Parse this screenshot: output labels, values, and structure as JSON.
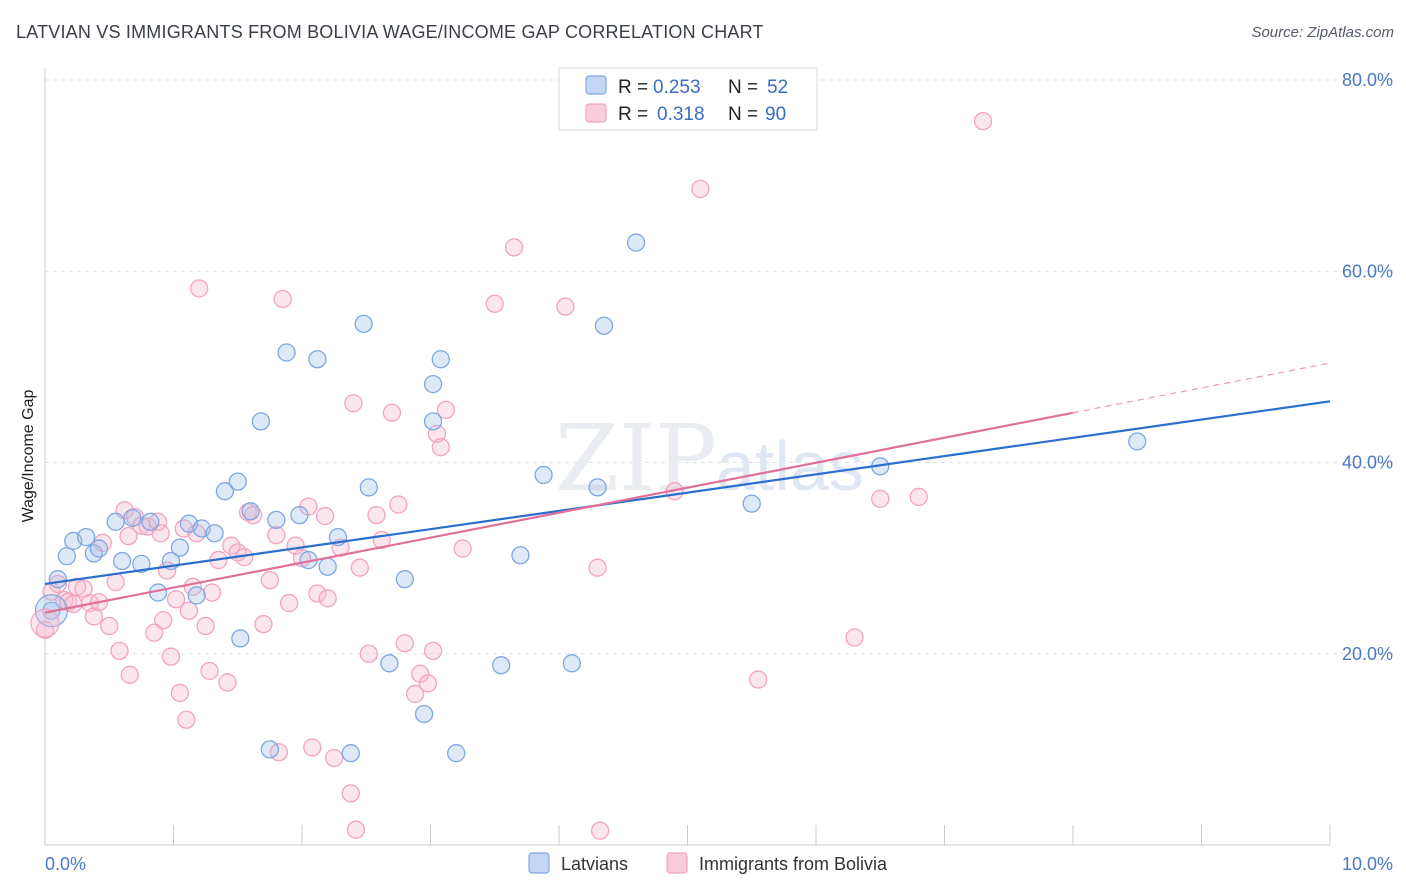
{
  "title": "LATVIAN VS IMMIGRANTS FROM BOLIVIA WAGE/INCOME GAP CORRELATION CHART",
  "source": "Source: ZipAtlas.com",
  "watermark": {
    "zip": "ZIP",
    "atlas": "atlas"
  },
  "chart_data": {
    "type": "scatter",
    "xlabel": "",
    "ylabel": "Wage/Income Gap",
    "xlim": [
      0,
      10
    ],
    "ylim": [
      0,
      80
    ],
    "x_tick_labels": [
      "0.0%",
      "10.0%"
    ],
    "y_ticks": [
      20,
      40,
      60,
      80
    ],
    "y_tick_labels": [
      "20.0%",
      "40.0%",
      "60.0%",
      "80.0%"
    ],
    "grid": true,
    "legend_placement": "top-center",
    "series": [
      {
        "name": "Latvians",
        "color": "#7ea7e0",
        "line_color": "#2a6fce",
        "R_label": "R =",
        "R_value": "0.253",
        "N_label": "N =",
        "N_value": "52",
        "trend": {
          "x0": 0,
          "y0": 27.3,
          "x1": 10,
          "y1": 46.4
        },
        "points": [
          [
            0.1,
            27.8
          ],
          [
            0.17,
            30.2
          ],
          [
            0.22,
            31.8
          ],
          [
            0.32,
            32.2
          ],
          [
            0.38,
            30.5
          ],
          [
            0.42,
            31.0
          ],
          [
            0.55,
            33.8
          ],
          [
            0.6,
            29.7
          ],
          [
            0.68,
            34.2
          ],
          [
            0.75,
            29.4
          ],
          [
            0.82,
            33.8
          ],
          [
            0.88,
            26.4
          ],
          [
            0.98,
            29.7
          ],
          [
            1.05,
            31.1
          ],
          [
            1.12,
            33.6
          ],
          [
            1.18,
            26.1
          ],
          [
            1.22,
            33.1
          ],
          [
            1.32,
            32.6
          ],
          [
            1.4,
            37.0
          ],
          [
            1.5,
            38.0
          ],
          [
            1.52,
            21.6
          ],
          [
            1.6,
            34.9
          ],
          [
            1.68,
            44.3
          ],
          [
            1.75,
            10.0
          ],
          [
            1.8,
            34.0
          ],
          [
            1.88,
            51.5
          ],
          [
            1.98,
            34.5
          ],
          [
            2.05,
            29.8
          ],
          [
            2.12,
            50.8
          ],
          [
            2.2,
            29.1
          ],
          [
            2.28,
            32.2
          ],
          [
            2.38,
            9.6
          ],
          [
            2.48,
            54.5
          ],
          [
            2.52,
            37.4
          ],
          [
            2.68,
            19.0
          ],
          [
            2.8,
            27.8
          ],
          [
            2.95,
            13.7
          ],
          [
            3.02,
            44.3
          ],
          [
            3.02,
            48.2
          ],
          [
            3.08,
            50.8
          ],
          [
            3.2,
            9.6
          ],
          [
            3.55,
            18.8
          ],
          [
            3.7,
            30.3
          ],
          [
            3.88,
            38.7
          ],
          [
            4.1,
            19.0
          ],
          [
            4.3,
            37.4
          ],
          [
            4.35,
            54.3
          ],
          [
            4.6,
            63.0
          ],
          [
            5.5,
            35.7
          ],
          [
            6.5,
            39.6
          ],
          [
            8.5,
            42.2
          ],
          [
            0.05,
            24.5
          ]
        ]
      },
      {
        "name": "Immigrants from Bolivia",
        "color": "#f2a3c0",
        "line_color": "#e0709a",
        "R_label": "R =",
        "R_value": "0.318",
        "N_label": "N =",
        "N_value": "90",
        "trend": {
          "x0": 0,
          "y0": 24.3,
          "x1": 8.0,
          "y1": 45.2
        },
        "trend_dashed": {
          "x0": 8.0,
          "y0": 45.2,
          "x1": 10,
          "y1": 50.4
        },
        "points": [
          [
            0.05,
            26.5
          ],
          [
            0.1,
            27.3
          ],
          [
            0.15,
            25.6
          ],
          [
            0.18,
            25.4
          ],
          [
            0.22,
            25.2
          ],
          [
            0.25,
            27.0
          ],
          [
            0.3,
            26.8
          ],
          [
            0.35,
            25.3
          ],
          [
            0.38,
            23.9
          ],
          [
            0.42,
            25.4
          ],
          [
            0.45,
            31.6
          ],
          [
            0.5,
            22.9
          ],
          [
            0.55,
            27.5
          ],
          [
            0.58,
            20.3
          ],
          [
            0.62,
            35.0
          ],
          [
            0.65,
            32.3
          ],
          [
            0.66,
            17.8
          ],
          [
            0.7,
            34.3
          ],
          [
            0.75,
            33.4
          ],
          [
            0.8,
            33.3
          ],
          [
            0.85,
            22.2
          ],
          [
            0.88,
            33.8
          ],
          [
            0.9,
            32.6
          ],
          [
            0.92,
            23.5
          ],
          [
            0.95,
            28.7
          ],
          [
            0.98,
            19.7
          ],
          [
            1.02,
            25.7
          ],
          [
            1.05,
            15.9
          ],
          [
            1.08,
            33.1
          ],
          [
            1.1,
            13.1
          ],
          [
            1.12,
            24.5
          ],
          [
            1.15,
            27.0
          ],
          [
            1.18,
            32.6
          ],
          [
            1.2,
            58.2
          ],
          [
            1.25,
            22.9
          ],
          [
            1.28,
            18.2
          ],
          [
            1.3,
            26.4
          ],
          [
            1.35,
            29.8
          ],
          [
            1.42,
            17.0
          ],
          [
            1.45,
            31.3
          ],
          [
            1.5,
            30.6
          ],
          [
            1.55,
            30.1
          ],
          [
            1.58,
            34.8
          ],
          [
            1.62,
            34.5
          ],
          [
            1.7,
            23.1
          ],
          [
            1.75,
            27.7
          ],
          [
            1.8,
            32.4
          ],
          [
            1.82,
            9.7
          ],
          [
            1.85,
            57.1
          ],
          [
            1.9,
            25.3
          ],
          [
            1.95,
            31.3
          ],
          [
            2.0,
            30.0
          ],
          [
            2.05,
            35.4
          ],
          [
            2.08,
            10.2
          ],
          [
            2.12,
            26.3
          ],
          [
            2.18,
            34.4
          ],
          [
            2.2,
            25.8
          ],
          [
            2.25,
            9.1
          ],
          [
            2.3,
            31.1
          ],
          [
            2.38,
            5.4
          ],
          [
            2.4,
            46.2
          ],
          [
            2.42,
            1.6
          ],
          [
            2.45,
            29.0
          ],
          [
            2.52,
            20.0
          ],
          [
            2.58,
            34.5
          ],
          [
            2.62,
            31.9
          ],
          [
            2.7,
            45.2
          ],
          [
            2.75,
            35.6
          ],
          [
            2.8,
            21.1
          ],
          [
            2.88,
            15.8
          ],
          [
            2.92,
            17.9
          ],
          [
            2.98,
            16.9
          ],
          [
            3.02,
            20.3
          ],
          [
            3.05,
            43.0
          ],
          [
            3.08,
            41.6
          ],
          [
            3.12,
            45.5
          ],
          [
            3.25,
            31.0
          ],
          [
            3.5,
            56.6
          ],
          [
            3.65,
            62.5
          ],
          [
            4.05,
            56.3
          ],
          [
            4.3,
            29.0
          ],
          [
            4.32,
            1.5
          ],
          [
            4.9,
            37.0
          ],
          [
            5.1,
            68.6
          ],
          [
            5.55,
            17.3
          ],
          [
            6.3,
            21.7
          ],
          [
            6.5,
            36.2
          ],
          [
            6.8,
            36.4
          ],
          [
            7.3,
            75.7
          ],
          [
            0.0,
            22.5
          ]
        ]
      }
    ]
  }
}
